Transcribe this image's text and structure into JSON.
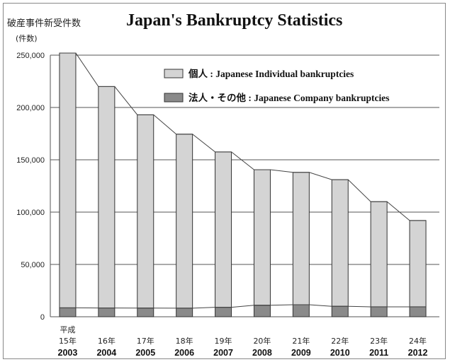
{
  "header": {
    "title_jp": "破産事件新受件数",
    "title_en": "Japan's Bankruptcy Statistics",
    "unit_label": "(件数)"
  },
  "colors": {
    "individual": "#d4d4d4",
    "company": "#8a8a8a",
    "bar_stroke": "#333333",
    "grid": "#555555",
    "trend_line": "#444444"
  },
  "chart_data": {
    "type": "bar",
    "stacked": true,
    "title": "Japan's Bankruptcy Statistics",
    "ylabel": "(件数)",
    "ylim": [
      0,
      250000
    ],
    "yticks": [
      0,
      50000,
      100000,
      150000,
      200000,
      250000
    ],
    "ytick_labels": [
      "0",
      "50,000",
      "100,000",
      "150,000",
      "200,000",
      "250,000"
    ],
    "grid": true,
    "legend_position": "top-right",
    "era_label": "平成",
    "categories": [
      "2003",
      "2004",
      "2005",
      "2006",
      "2007",
      "2008",
      "2009",
      "2010",
      "2011",
      "2012"
    ],
    "jp_years": [
      "15年",
      "16年",
      "17年",
      "18年",
      "19年",
      "20年",
      "21年",
      "22年",
      "23年",
      "24年"
    ],
    "series": [
      {
        "name": "法人・その他 : Japanese Company bankruptcies",
        "values": [
          8500,
          8400,
          8300,
          8200,
          9000,
          11000,
          11500,
          10000,
          9500,
          9500
        ]
      },
      {
        "name": "個人 : Japanese Individual bankruptcies",
        "values": [
          243500,
          211600,
          184700,
          166300,
          148500,
          129500,
          126500,
          121000,
          100500,
          82500
        ]
      }
    ],
    "totals": [
      252000,
      220000,
      193000,
      174500,
      157500,
      140500,
      138000,
      131000,
      110000,
      92000
    ]
  }
}
